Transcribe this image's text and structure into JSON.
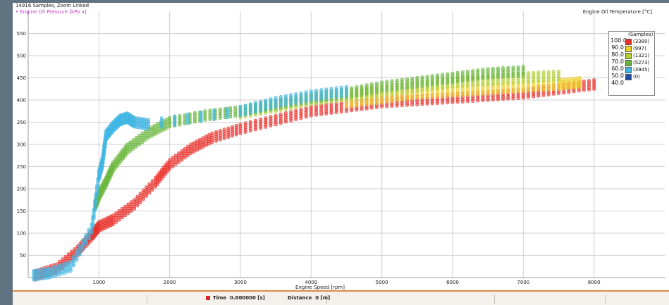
{
  "header": {
    "sample_info": "14916 Samples, Zoom Linked",
    "series_label": "Engine Oil Pressure [kPa a]",
    "color_channel": "Engine Oil Temperature [°C]"
  },
  "legend": {
    "title": "(Samples)",
    "ticks": [
      "100.0",
      "90.0",
      "80.0",
      "70.0",
      "60.0",
      "50.0",
      "40.0"
    ],
    "bins": [
      {
        "count": "(3380)",
        "color": "#e8312b"
      },
      {
        "count": "(997)",
        "color": "#efd12b"
      },
      {
        "count": "(1321)",
        "color": "#b3cf37"
      },
      {
        "count": "(5273)",
        "color": "#6ab63d"
      },
      {
        "count": "(3945)",
        "color": "#42b7e4"
      },
      {
        "count": "(0)",
        "color": "#1f4ea1"
      }
    ]
  },
  "status": {
    "time_label": "Time",
    "time_value": "0.000000 [s]",
    "distance_label": "Distance",
    "distance_value": "0 [m]",
    "time_marker_color": "#d42a2a"
  },
  "chart_data": {
    "type": "scatter",
    "title": "",
    "xlabel": "Engine Speed [rpm]",
    "ylabel": "Engine Oil Pressure [kPa a]",
    "xlim": [
      0,
      9000
    ],
    "ylim": [
      0,
      600
    ],
    "xticks": [
      1000,
      2000,
      3000,
      4000,
      5000,
      6000,
      7000,
      8000
    ],
    "yticks": [
      50,
      100,
      150,
      200,
      250,
      300,
      350,
      400,
      450,
      500,
      550
    ],
    "grid": true,
    "color_by": "Engine Oil Temperature [°C]",
    "total_samples": 14916,
    "series": [
      {
        "temp_bin": "90-100",
        "color": "#e8312b",
        "points": [
          [
            100,
            5
          ],
          [
            400,
            20
          ],
          [
            700,
            60
          ],
          [
            900,
            95
          ],
          [
            1000,
            115
          ],
          [
            1200,
            130
          ],
          [
            1500,
            165
          ],
          [
            1800,
            215
          ],
          [
            2000,
            255
          ],
          [
            2300,
            290
          ],
          [
            2600,
            315
          ],
          [
            3000,
            335
          ],
          [
            3500,
            355
          ],
          [
            4000,
            375
          ],
          [
            4500,
            385
          ],
          [
            5000,
            395
          ],
          [
            5500,
            400
          ],
          [
            6000,
            405
          ],
          [
            6500,
            410
          ],
          [
            7000,
            415
          ],
          [
            7500,
            425
          ],
          [
            8000,
            435
          ]
        ]
      },
      {
        "temp_bin": "80-90",
        "color": "#efd12b",
        "points": [
          [
            4500,
            395
          ],
          [
            5000,
            405
          ],
          [
            5500,
            415
          ],
          [
            6000,
            420
          ],
          [
            6500,
            425
          ],
          [
            7000,
            430
          ],
          [
            7500,
            435
          ],
          [
            7800,
            440
          ]
        ]
      },
      {
        "temp_bin": "70-80",
        "color": "#b3cf37",
        "points": [
          [
            3000,
            370
          ],
          [
            3500,
            385
          ],
          [
            4000,
            400
          ],
          [
            4500,
            410
          ],
          [
            5000,
            420
          ],
          [
            5500,
            430
          ],
          [
            6000,
            440
          ],
          [
            6500,
            445
          ],
          [
            7000,
            450
          ],
          [
            7500,
            455
          ]
        ]
      },
      {
        "temp_bin": "60-70",
        "color": "#6ab63d",
        "points": [
          [
            950,
            165
          ],
          [
            1000,
            185
          ],
          [
            1100,
            215
          ],
          [
            1200,
            250
          ],
          [
            1400,
            290
          ],
          [
            1700,
            325
          ],
          [
            2000,
            350
          ],
          [
            2500,
            365
          ],
          [
            3000,
            375
          ],
          [
            3500,
            390
          ],
          [
            4000,
            405
          ],
          [
            4500,
            415
          ],
          [
            5000,
            430
          ],
          [
            5500,
            440
          ],
          [
            6000,
            450
          ],
          [
            6500,
            460
          ],
          [
            7000,
            465
          ]
        ]
      },
      {
        "temp_bin": "50-60",
        "color": "#42b7e4",
        "points": [
          [
            80,
            5
          ],
          [
            300,
            10
          ],
          [
            600,
            25
          ],
          [
            900,
            110
          ],
          [
            1000,
            230
          ],
          [
            1050,
            260
          ],
          [
            1100,
            320
          ],
          [
            1200,
            340
          ],
          [
            1300,
            355
          ],
          [
            1400,
            360
          ],
          [
            1500,
            350
          ],
          [
            1700,
            345
          ],
          [
            3000,
            375
          ],
          [
            3500,
            395
          ],
          [
            4000,
            410
          ],
          [
            4500,
            420
          ]
        ]
      }
    ]
  }
}
